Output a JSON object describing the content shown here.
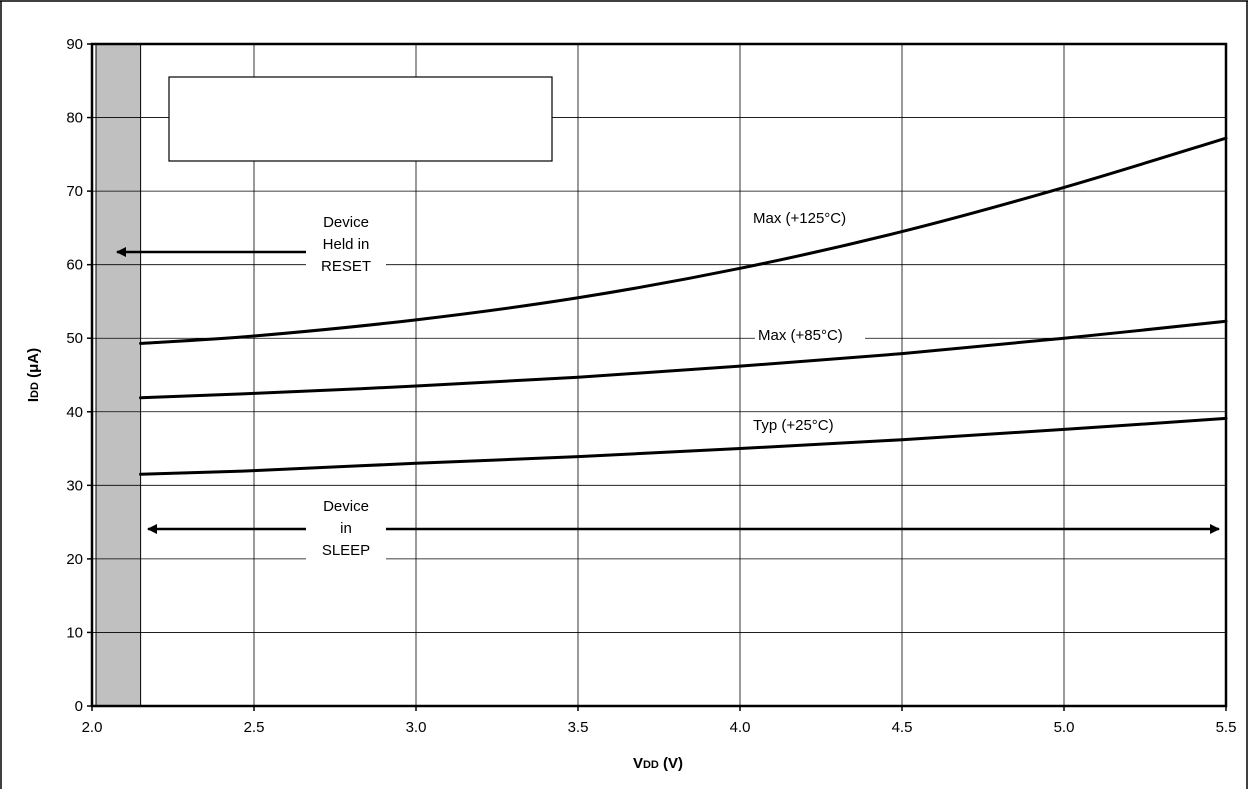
{
  "chart_data": {
    "type": "line",
    "xlabel": "VDD (V)",
    "xlabel_main": "V",
    "xlabel_sub": "DD",
    "xlabel_tail": " (V)",
    "ylabel": "IDD (μA)",
    "ylabel_main": "I",
    "ylabel_sub": "DD",
    "ylabel_tail": " (μA)",
    "xlim": [
      2.0,
      5.5
    ],
    "ylim": [
      0,
      90
    ],
    "x_ticks": [
      "2.0",
      "2.5",
      "3.0",
      "3.5",
      "4.0",
      "4.5",
      "5.0",
      "5.5"
    ],
    "y_ticks": [
      "0",
      "10",
      "20",
      "30",
      "40",
      "50",
      "60",
      "70",
      "80",
      "90"
    ],
    "grid": true,
    "reset_region_x": [
      2.0,
      2.15
    ],
    "series": [
      {
        "name": "Max (+125°C)",
        "x": [
          2.15,
          2.5,
          3.0,
          3.5,
          4.0,
          4.5,
          5.0,
          5.5
        ],
        "y": [
          49.3,
          50.3,
          52.5,
          55.5,
          59.5,
          64.5,
          70.5,
          77.2
        ]
      },
      {
        "name": "Max (+85°C)",
        "x": [
          2.15,
          2.5,
          3.0,
          3.5,
          4.0,
          4.5,
          5.0,
          5.5
        ],
        "y": [
          41.9,
          42.5,
          43.5,
          44.7,
          46.2,
          47.9,
          50.0,
          52.3
        ]
      },
      {
        "name": "Typ (+25°C)",
        "x": [
          2.15,
          2.5,
          3.0,
          3.5,
          4.0,
          4.5,
          5.0,
          5.5
        ],
        "y": [
          31.5,
          32.0,
          33.0,
          33.9,
          35.0,
          36.2,
          37.6,
          39.1
        ]
      }
    ],
    "annotations": {
      "reset": [
        "Device",
        "Held in",
        "RESET"
      ],
      "sleep": [
        "Device",
        "in",
        "SLEEP"
      ]
    }
  }
}
